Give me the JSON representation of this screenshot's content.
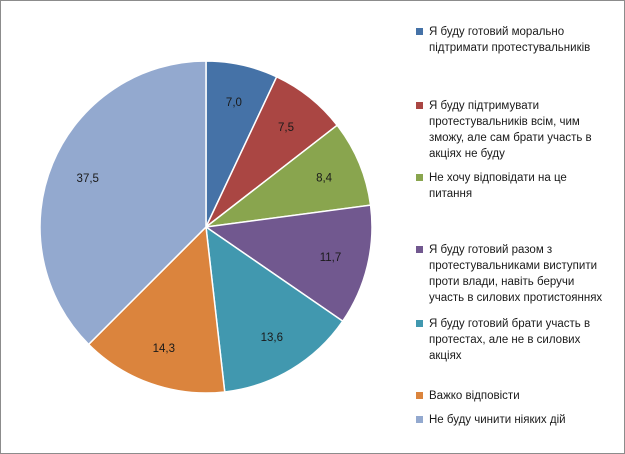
{
  "chart_data": {
    "type": "pie",
    "start_angle_deg": 0,
    "direction": "clockwise",
    "slices": [
      {
        "label": "Я буду готовий морально\nпідтримати протестувальників",
        "value": 7.0,
        "display": "7,0",
        "color": "#4572A7"
      },
      {
        "label": "Я буду підтримувати\nпротестувальників всім, чим\nзможу, але сам брати участь в\nакціях не буду",
        "value": 7.5,
        "display": "7,5",
        "color": "#AA4643"
      },
      {
        "label": "Не хочу відповідати на це\nпитання",
        "value": 8.4,
        "display": "8,4",
        "color": "#89A54E"
      },
      {
        "label": "Я буду готовий разом з\nпротестувальниками виступити\nпроти влади, навіть беручи\nучасть в силових протистояннях",
        "value": 11.7,
        "display": "11,7",
        "color": "#71588F"
      },
      {
        "label": "Я буду готовий брати участь в\nпротестах, але не в силових\nакціях",
        "value": 13.6,
        "display": "13,6",
        "color": "#4198AF"
      },
      {
        "label": "Важко відповісти",
        "value": 14.3,
        "display": "14,3",
        "color": "#DB843D"
      },
      {
        "label": "Не буду чинити ніяких дій",
        "value": 37.5,
        "display": "37,5",
        "color": "#93A9CF"
      }
    ],
    "legend_position": "right"
  }
}
